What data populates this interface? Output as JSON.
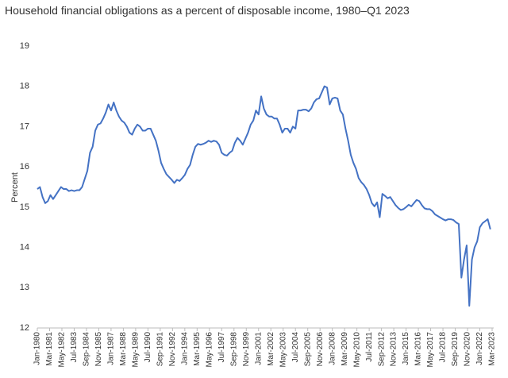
{
  "chart_data": {
    "type": "line",
    "title": "Household financial obligations as a percent of disposable income, 1980–Q1 2023",
    "y_label": "Percent",
    "color": "#4472c4",
    "ylim": [
      12,
      19
    ],
    "yticks": [
      12,
      13,
      14,
      15,
      16,
      17,
      18,
      19
    ],
    "xticks": [
      "Jan-1980",
      "Mar-1981",
      "May-1982",
      "Jul-1983",
      "Sep-1984",
      "Nov-1985",
      "Jan-1987",
      "Mar-1988",
      "May-1989",
      "Jul-1990",
      "Sep-1991",
      "Nov-1992",
      "Jan-1994",
      "Mar-1995",
      "May-1996",
      "Jul-1997",
      "Sep-1998",
      "Nov-1999",
      "Jan-2001",
      "Mar-2002",
      "May-2003",
      "Jul-2004",
      "Sep-2005",
      "Nov-2006",
      "Jan-2008",
      "Mar-2009",
      "May-2010",
      "Jul-2011",
      "Sep-2012",
      "Nov-2013",
      "Jan-2015",
      "Mar-2016",
      "May-2017",
      "Jul-2018",
      "Sep-2019",
      "Nov-2020",
      "Jan-2022",
      "Mar-2023"
    ],
    "x": [
      "Jan-1980",
      "Apr-1980",
      "Jul-1980",
      "Oct-1980",
      "Jan-1981",
      "Apr-1981",
      "Jul-1981",
      "Oct-1981",
      "Jan-1982",
      "Apr-1982",
      "Jul-1982",
      "Oct-1982",
      "Jan-1983",
      "Apr-1983",
      "Jul-1983",
      "Oct-1983",
      "Jan-1984",
      "Apr-1984",
      "Jul-1984",
      "Oct-1984",
      "Jan-1985",
      "Apr-1985",
      "Jul-1985",
      "Oct-1985",
      "Jan-1986",
      "Apr-1986",
      "Jul-1986",
      "Oct-1986",
      "Jan-1987",
      "Apr-1987",
      "Jul-1987",
      "Oct-1987",
      "Jan-1988",
      "Apr-1988",
      "Jul-1988",
      "Oct-1988",
      "Jan-1989",
      "Apr-1989",
      "Jul-1989",
      "Oct-1989",
      "Jan-1990",
      "Apr-1990",
      "Jul-1990",
      "Oct-1990",
      "Jan-1991",
      "Apr-1991",
      "Jul-1991",
      "Oct-1991",
      "Jan-1992",
      "Apr-1992",
      "Jul-1992",
      "Oct-1992",
      "Jan-1993",
      "Apr-1993",
      "Jul-1993",
      "Oct-1993",
      "Jan-1994",
      "Apr-1994",
      "Jul-1994",
      "Oct-1994",
      "Jan-1995",
      "Apr-1995",
      "Jul-1995",
      "Oct-1995",
      "Jan-1996",
      "Apr-1996",
      "Jul-1996",
      "Oct-1996",
      "Jan-1997",
      "Apr-1997",
      "Jul-1997",
      "Oct-1997",
      "Jan-1998",
      "Apr-1998",
      "Jul-1998",
      "Oct-1998",
      "Jan-1999",
      "Apr-1999",
      "Jul-1999",
      "Oct-1999",
      "Jan-2000",
      "Apr-2000",
      "Jul-2000",
      "Oct-2000",
      "Jan-2001",
      "Apr-2001",
      "Jul-2001",
      "Oct-2001",
      "Jan-2002",
      "Apr-2002",
      "Jul-2002",
      "Oct-2002",
      "Jan-2003",
      "Apr-2003",
      "Jul-2003",
      "Oct-2003",
      "Jan-2004",
      "Apr-2004",
      "Jul-2004",
      "Oct-2004",
      "Jan-2005",
      "Apr-2005",
      "Jul-2005",
      "Oct-2005",
      "Jan-2006",
      "Apr-2006",
      "Jul-2006",
      "Oct-2006",
      "Jan-2007",
      "Apr-2007",
      "Jul-2007",
      "Oct-2007",
      "Jan-2008",
      "Apr-2008",
      "Jul-2008",
      "Oct-2008",
      "Jan-2009",
      "Apr-2009",
      "Jul-2009",
      "Oct-2009",
      "Jan-2010",
      "Apr-2010",
      "Jul-2010",
      "Oct-2010",
      "Jan-2011",
      "Apr-2011",
      "Jul-2011",
      "Oct-2011",
      "Jan-2012",
      "Apr-2012",
      "Jul-2012",
      "Oct-2012",
      "Jan-2013",
      "Apr-2013",
      "Jul-2013",
      "Oct-2013",
      "Jan-2014",
      "Apr-2014",
      "Jul-2014",
      "Oct-2014",
      "Jan-2015",
      "Apr-2015",
      "Jul-2015",
      "Oct-2015",
      "Jan-2016",
      "Apr-2016",
      "Jul-2016",
      "Oct-2016",
      "Jan-2017",
      "Apr-2017",
      "Jul-2017",
      "Oct-2017",
      "Jan-2018",
      "Apr-2018",
      "Jul-2018",
      "Oct-2018",
      "Jan-2019",
      "Apr-2019",
      "Jul-2019",
      "Oct-2019",
      "Jan-2020",
      "Apr-2020",
      "Jul-2020",
      "Oct-2020",
      "Jan-2021",
      "Apr-2021",
      "Jul-2021",
      "Oct-2021",
      "Jan-2022",
      "Apr-2022",
      "Jul-2022",
      "Oct-2022",
      "Jan-2023"
    ],
    "values": [
      15.45,
      15.5,
      15.25,
      15.1,
      15.15,
      15.3,
      15.2,
      15.3,
      15.4,
      15.5,
      15.45,
      15.45,
      15.4,
      15.42,
      15.4,
      15.42,
      15.42,
      15.5,
      15.7,
      15.9,
      16.35,
      16.5,
      16.9,
      17.05,
      17.08,
      17.2,
      17.35,
      17.55,
      17.4,
      17.6,
      17.4,
      17.25,
      17.15,
      17.1,
      17.0,
      16.85,
      16.8,
      16.95,
      17.05,
      17.0,
      16.9,
      16.9,
      16.95,
      16.95,
      16.8,
      16.65,
      16.4,
      16.1,
      15.95,
      15.82,
      15.75,
      15.68,
      15.6,
      15.68,
      15.65,
      15.72,
      15.8,
      15.95,
      16.05,
      16.3,
      16.5,
      16.57,
      16.55,
      16.57,
      16.6,
      16.65,
      16.62,
      16.65,
      16.63,
      16.55,
      16.35,
      16.3,
      16.28,
      16.35,
      16.4,
      16.6,
      16.72,
      16.65,
      16.55,
      16.7,
      16.85,
      17.05,
      17.15,
      17.4,
      17.3,
      17.75,
      17.45,
      17.3,
      17.25,
      17.25,
      17.2,
      17.2,
      17.05,
      16.85,
      16.95,
      16.95,
      16.85,
      17.0,
      16.95,
      17.4,
      17.4,
      17.42,
      17.42,
      17.38,
      17.45,
      17.6,
      17.68,
      17.7,
      17.85,
      18.0,
      17.97,
      17.55,
      17.7,
      17.72,
      17.7,
      17.4,
      17.3,
      16.95,
      16.65,
      16.3,
      16.1,
      15.95,
      15.72,
      15.62,
      15.55,
      15.45,
      15.3,
      15.1,
      15.02,
      15.12,
      14.75,
      15.33,
      15.28,
      15.22,
      15.25,
      15.15,
      15.05,
      14.98,
      14.93,
      14.95,
      15.0,
      15.06,
      15.02,
      15.1,
      15.18,
      15.15,
      15.05,
      14.97,
      14.95,
      14.95,
      14.9,
      14.82,
      14.78,
      14.74,
      14.7,
      14.67,
      14.7,
      14.7,
      14.68,
      14.62,
      14.58,
      13.25,
      13.7,
      14.05,
      12.55,
      13.7,
      14.0,
      14.15,
      14.5,
      14.6,
      14.65,
      14.7,
      14.45
    ]
  }
}
